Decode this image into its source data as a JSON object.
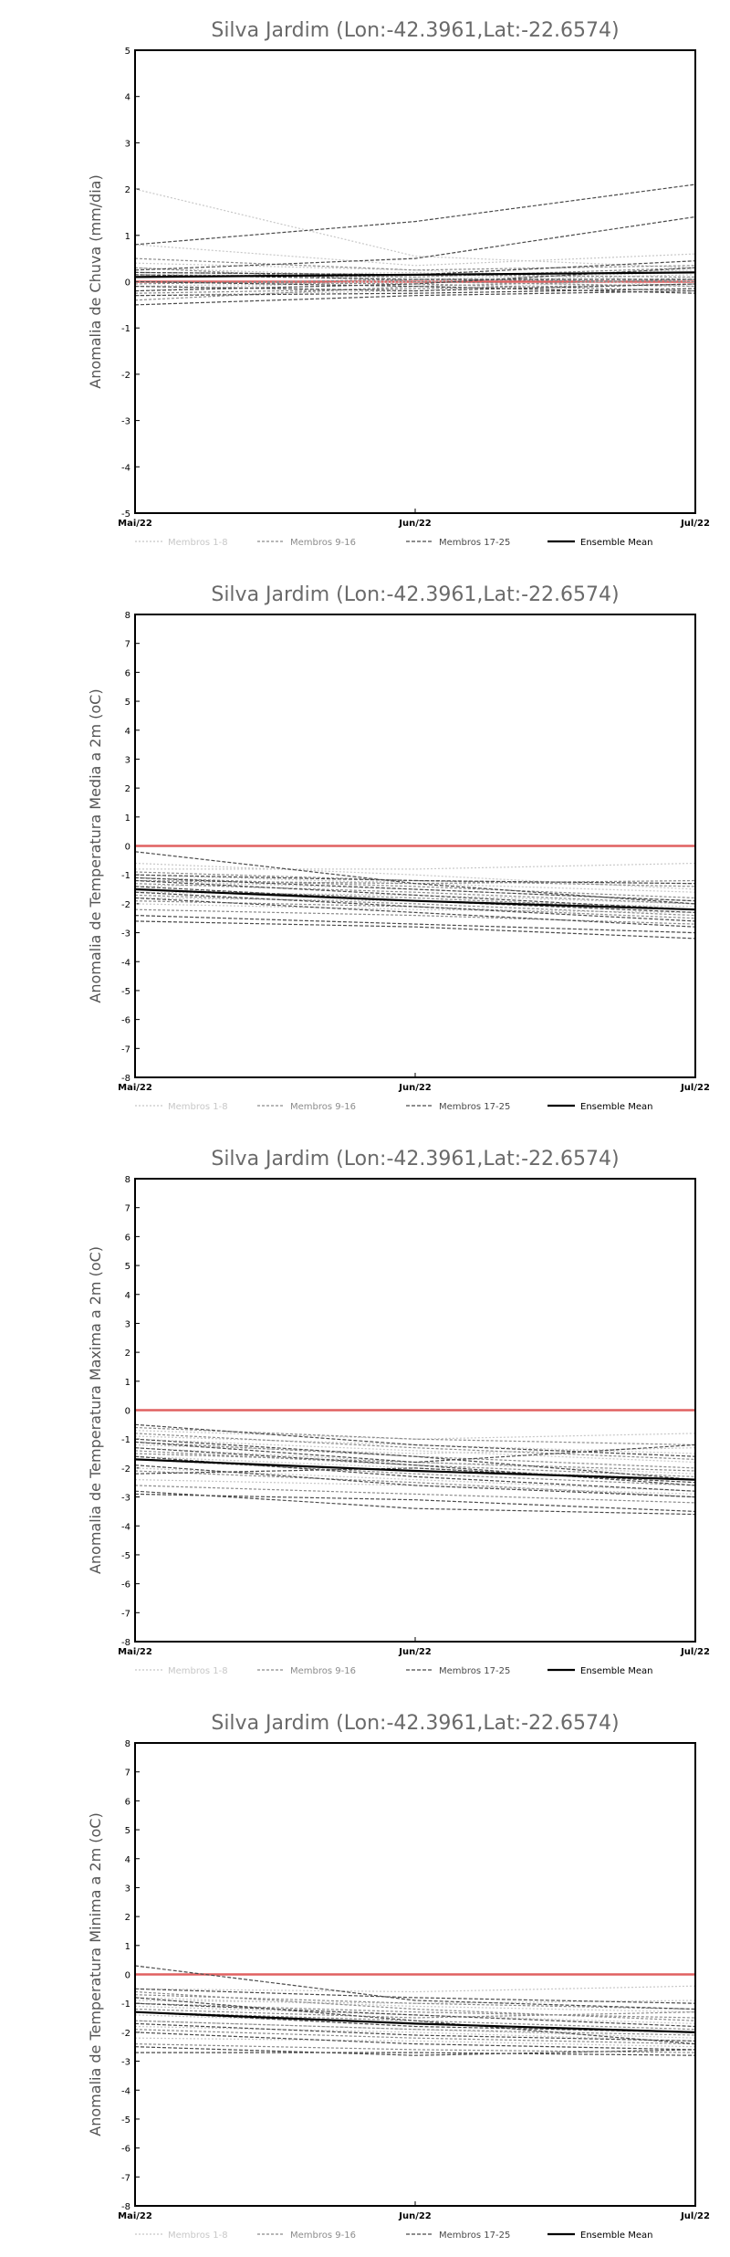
{
  "chart_data": [
    {
      "type": "line",
      "title": "Silva Jardim (Lon:-42.3961,Lat:-22.6574)",
      "ylabel": "Anomalia de Chuva (mm/dia)",
      "categories": [
        "Mai/22",
        "Jun/22",
        "Jul/22"
      ],
      "ylim": [
        -5,
        5
      ],
      "yticks": [
        -5,
        -4,
        -3,
        -2,
        -1,
        0,
        1,
        2,
        3,
        4,
        5
      ],
      "zero_line_color": "#e06060",
      "series": [
        {
          "group": 0,
          "values": [
            2.0,
            0.55,
            0.3
          ]
        },
        {
          "group": 0,
          "values": [
            0.8,
            0.35,
            0.6
          ]
        },
        {
          "group": 0,
          "values": [
            0.3,
            0.1,
            0.25
          ]
        },
        {
          "group": 0,
          "values": [
            -0.1,
            0.0,
            0.15
          ]
        },
        {
          "group": 0,
          "values": [
            -0.3,
            -0.2,
            0.1
          ]
        },
        {
          "group": 0,
          "values": [
            0.4,
            0.25,
            0.0
          ]
        },
        {
          "group": 0,
          "values": [
            0.1,
            0.2,
            -0.1
          ]
        },
        {
          "group": 0,
          "values": [
            -0.2,
            0.05,
            0.2
          ]
        },
        {
          "group": 1,
          "values": [
            0.5,
            0.25,
            0.35
          ]
        },
        {
          "group": 1,
          "values": [
            0.2,
            0.15,
            0.1
          ]
        },
        {
          "group": 1,
          "values": [
            -0.05,
            0.05,
            0.0
          ]
        },
        {
          "group": 1,
          "values": [
            -0.4,
            -0.1,
            0.05
          ]
        },
        {
          "group": 1,
          "values": [
            0.0,
            -0.05,
            -0.2
          ]
        },
        {
          "group": 1,
          "values": [
            0.3,
            0.0,
            -0.1
          ]
        },
        {
          "group": 1,
          "values": [
            0.15,
            0.1,
            0.3
          ]
        },
        {
          "group": 1,
          "values": [
            -0.25,
            -0.15,
            -0.05
          ]
        },
        {
          "group": 2,
          "values": [
            0.8,
            1.3,
            2.1
          ]
        },
        {
          "group": 2,
          "values": [
            0.25,
            0.5,
            1.4
          ]
        },
        {
          "group": 2,
          "values": [
            0.2,
            0.15,
            0.45
          ]
        },
        {
          "group": 2,
          "values": [
            0.15,
            0.05,
            0.05
          ]
        },
        {
          "group": 2,
          "values": [
            -0.1,
            -0.2,
            -0.05
          ]
        },
        {
          "group": 2,
          "values": [
            -0.3,
            -0.25,
            -0.15
          ]
        },
        {
          "group": 2,
          "values": [
            -0.5,
            -0.3,
            -0.2
          ]
        },
        {
          "group": 2,
          "values": [
            0.0,
            -0.1,
            -0.25
          ]
        },
        {
          "group": 2,
          "values": [
            -0.2,
            -0.05,
            0.3
          ]
        },
        {
          "group": 3,
          "values": [
            0.1,
            0.15,
            0.2
          ]
        }
      ]
    },
    {
      "type": "line",
      "title": "Silva Jardim (Lon:-42.3961,Lat:-22.6574)",
      "ylabel": "Anomalia de Temperatura Media a 2m (oC)",
      "categories": [
        "Mai/22",
        "Jun/22",
        "Jul/22"
      ],
      "ylim": [
        -8,
        8
      ],
      "yticks": [
        -8,
        -7,
        -6,
        -5,
        -4,
        -3,
        -2,
        -1,
        0,
        1,
        2,
        3,
        4,
        5,
        6,
        7,
        8
      ],
      "zero_line_color": "#e06060",
      "series": [
        {
          "group": 0,
          "values": [
            -0.8,
            -0.8,
            -0.6
          ]
        },
        {
          "group": 0,
          "values": [
            -1.0,
            -1.3,
            -1.6
          ]
        },
        {
          "group": 0,
          "values": [
            -1.2,
            -1.5,
            -1.9
          ]
        },
        {
          "group": 0,
          "values": [
            -1.6,
            -1.7,
            -2.0
          ]
        },
        {
          "group": 0,
          "values": [
            -2.0,
            -2.2,
            -2.3
          ]
        },
        {
          "group": 0,
          "values": [
            -1.4,
            -1.2,
            -1.3
          ]
        },
        {
          "group": 0,
          "values": [
            -0.6,
            -1.0,
            -1.5
          ]
        },
        {
          "group": 0,
          "values": [
            -1.8,
            -1.9,
            -2.1
          ]
        },
        {
          "group": 1,
          "values": [
            -1.1,
            -1.4,
            -1.8
          ]
        },
        {
          "group": 1,
          "values": [
            -1.3,
            -1.6,
            -2.0
          ]
        },
        {
          "group": 1,
          "values": [
            -1.5,
            -1.8,
            -2.2
          ]
        },
        {
          "group": 1,
          "values": [
            -1.7,
            -2.0,
            -2.4
          ]
        },
        {
          "group": 1,
          "values": [
            -0.9,
            -1.2,
            -1.4
          ]
        },
        {
          "group": 1,
          "values": [
            -1.9,
            -2.1,
            -2.5
          ]
        },
        {
          "group": 1,
          "values": [
            -2.2,
            -2.4,
            -2.7
          ]
        },
        {
          "group": 1,
          "values": [
            -1.2,
            -1.3,
            -1.2
          ]
        },
        {
          "group": 2,
          "values": [
            -0.2,
            -1.3,
            -2.0
          ]
        },
        {
          "group": 2,
          "values": [
            -1.0,
            -1.2,
            -1.3
          ]
        },
        {
          "group": 2,
          "values": [
            -1.2,
            -1.7,
            -2.2
          ]
        },
        {
          "group": 2,
          "values": [
            -1.4,
            -1.9,
            -2.3
          ]
        },
        {
          "group": 2,
          "values": [
            -1.6,
            -2.1,
            -2.6
          ]
        },
        {
          "group": 2,
          "values": [
            -2.4,
            -2.7,
            -3.0
          ]
        },
        {
          "group": 2,
          "values": [
            -2.6,
            -2.8,
            -3.2
          ]
        },
        {
          "group": 2,
          "values": [
            -1.1,
            -1.5,
            -1.9
          ]
        },
        {
          "group": 2,
          "values": [
            -1.8,
            -2.3,
            -2.8
          ]
        },
        {
          "group": 3,
          "values": [
            -1.5,
            -1.9,
            -2.2
          ]
        }
      ]
    },
    {
      "type": "line",
      "title": "Silva Jardim (Lon:-42.3961,Lat:-22.6574)",
      "ylabel": "Anomalia de Temperatura Maxima a 2m (oC)",
      "categories": [
        "Mai/22",
        "Jun/22",
        "Jul/22"
      ],
      "ylim": [
        -8,
        8
      ],
      "yticks": [
        -8,
        -7,
        -6,
        -5,
        -4,
        -3,
        -2,
        -1,
        0,
        1,
        2,
        3,
        4,
        5,
        6,
        7,
        8
      ],
      "zero_line_color": "#e06060",
      "series": [
        {
          "group": 0,
          "values": [
            -0.7,
            -1.0,
            -0.8
          ]
        },
        {
          "group": 0,
          "values": [
            -1.0,
            -1.4,
            -1.8
          ]
        },
        {
          "group": 0,
          "values": [
            -1.3,
            -1.8,
            -2.2
          ]
        },
        {
          "group": 0,
          "values": [
            -1.6,
            -2.0,
            -2.4
          ]
        },
        {
          "group": 0,
          "values": [
            -2.0,
            -2.4,
            -2.8
          ]
        },
        {
          "group": 0,
          "values": [
            -0.9,
            -1.2,
            -1.5
          ]
        },
        {
          "group": 0,
          "values": [
            -2.4,
            -2.6,
            -2.9
          ]
        },
        {
          "group": 0,
          "values": [
            -1.2,
            -1.5,
            -1.3
          ]
        },
        {
          "group": 1,
          "values": [
            -0.8,
            -1.3,
            -1.7
          ]
        },
        {
          "group": 1,
          "values": [
            -1.1,
            -1.6,
            -2.0
          ]
        },
        {
          "group": 1,
          "values": [
            -1.4,
            -1.9,
            -2.3
          ]
        },
        {
          "group": 1,
          "values": [
            -1.7,
            -2.2,
            -2.6
          ]
        },
        {
          "group": 1,
          "values": [
            -2.1,
            -2.5,
            -3.0
          ]
        },
        {
          "group": 1,
          "values": [
            -0.6,
            -1.0,
            -1.2
          ]
        },
        {
          "group": 1,
          "values": [
            -2.6,
            -2.9,
            -3.2
          ]
        },
        {
          "group": 1,
          "values": [
            -1.5,
            -1.8,
            -2.1
          ]
        },
        {
          "group": 2,
          "values": [
            -0.5,
            -1.2,
            -1.6
          ]
        },
        {
          "group": 2,
          "values": [
            -1.0,
            -1.6,
            -2.4
          ]
        },
        {
          "group": 2,
          "values": [
            -1.3,
            -1.9,
            -2.6
          ]
        },
        {
          "group": 2,
          "values": [
            -1.6,
            -2.3,
            -2.8
          ]
        },
        {
          "group": 2,
          "values": [
            -1.9,
            -2.6,
            -3.0
          ]
        },
        {
          "group": 2,
          "values": [
            -2.8,
            -3.4,
            -3.6
          ]
        },
        {
          "group": 2,
          "values": [
            -2.9,
            -3.1,
            -3.5
          ]
        },
        {
          "group": 2,
          "values": [
            -1.1,
            -1.8,
            -1.2
          ]
        },
        {
          "group": 2,
          "values": [
            -2.2,
            -2.0,
            -2.5
          ]
        },
        {
          "group": 3,
          "values": [
            -1.7,
            -2.1,
            -2.4
          ]
        }
      ]
    },
    {
      "type": "line",
      "title": "Silva Jardim (Lon:-42.3961,Lat:-22.6574)",
      "ylabel": "Anomalia de Temperatura Minima a 2m (oC)",
      "categories": [
        "Mai/22",
        "Jun/22",
        "Jul/22"
      ],
      "ylim": [
        -8,
        8
      ],
      "yticks": [
        -8,
        -7,
        -6,
        -5,
        -4,
        -3,
        -2,
        -1,
        0,
        1,
        2,
        3,
        4,
        5,
        6,
        7,
        8
      ],
      "zero_line_color": "#e06060",
      "series": [
        {
          "group": 0,
          "values": [
            -0.5,
            -0.6,
            -0.4
          ]
        },
        {
          "group": 0,
          "values": [
            -0.8,
            -1.1,
            -1.3
          ]
        },
        {
          "group": 0,
          "values": [
            -1.1,
            -1.4,
            -1.7
          ]
        },
        {
          "group": 0,
          "values": [
            -1.4,
            -1.7,
            -2.0
          ]
        },
        {
          "group": 0,
          "values": [
            -1.8,
            -2.0,
            -2.3
          ]
        },
        {
          "group": 0,
          "values": [
            -2.2,
            -2.3,
            -2.5
          ]
        },
        {
          "group": 0,
          "values": [
            -0.9,
            -1.0,
            -0.9
          ]
        },
        {
          "group": 0,
          "values": [
            -1.6,
            -1.9,
            -2.2
          ]
        },
        {
          "group": 1,
          "values": [
            -0.7,
            -1.0,
            -1.2
          ]
        },
        {
          "group": 1,
          "values": [
            -1.0,
            -1.3,
            -1.5
          ]
        },
        {
          "group": 1,
          "values": [
            -1.3,
            -1.6,
            -1.9
          ]
        },
        {
          "group": 1,
          "values": [
            -1.6,
            -1.9,
            -2.1
          ]
        },
        {
          "group": 1,
          "values": [
            -1.9,
            -2.2,
            -2.4
          ]
        },
        {
          "group": 1,
          "values": [
            -2.4,
            -2.6,
            -2.7
          ]
        },
        {
          "group": 1,
          "values": [
            -0.6,
            -1.2,
            -1.6
          ]
        },
        {
          "group": 1,
          "values": [
            -1.2,
            -1.5,
            -1.3
          ]
        },
        {
          "group": 2,
          "values": [
            0.3,
            -0.9,
            -1.2
          ]
        },
        {
          "group": 2,
          "values": [
            -0.5,
            -0.8,
            -1.0
          ]
        },
        {
          "group": 2,
          "values": [
            -1.0,
            -1.4,
            -1.8
          ]
        },
        {
          "group": 2,
          "values": [
            -1.3,
            -1.8,
            -2.0
          ]
        },
        {
          "group": 2,
          "values": [
            -1.7,
            -2.1,
            -2.3
          ]
        },
        {
          "group": 2,
          "values": [
            -2.5,
            -2.8,
            -2.6
          ]
        },
        {
          "group": 2,
          "values": [
            -2.7,
            -2.7,
            -2.8
          ]
        },
        {
          "group": 2,
          "values": [
            -0.8,
            -1.6,
            -2.4
          ]
        },
        {
          "group": 2,
          "values": [
            -2.0,
            -2.4,
            -2.6
          ]
        },
        {
          "group": 3,
          "values": [
            -1.3,
            -1.7,
            -2.0
          ]
        }
      ]
    }
  ],
  "legend": {
    "items": [
      {
        "label": "Membros 1-8",
        "color": "#c8c8c8",
        "dash": "2,2"
      },
      {
        "label": "Membros 9-16",
        "color": "#8c8c8c",
        "dash": "3,2"
      },
      {
        "label": "Membros 17-25",
        "color": "#4a4a4a",
        "dash": "4,2"
      },
      {
        "label": "Ensemble Mean",
        "color": "#000000",
        "dash": ""
      }
    ]
  }
}
